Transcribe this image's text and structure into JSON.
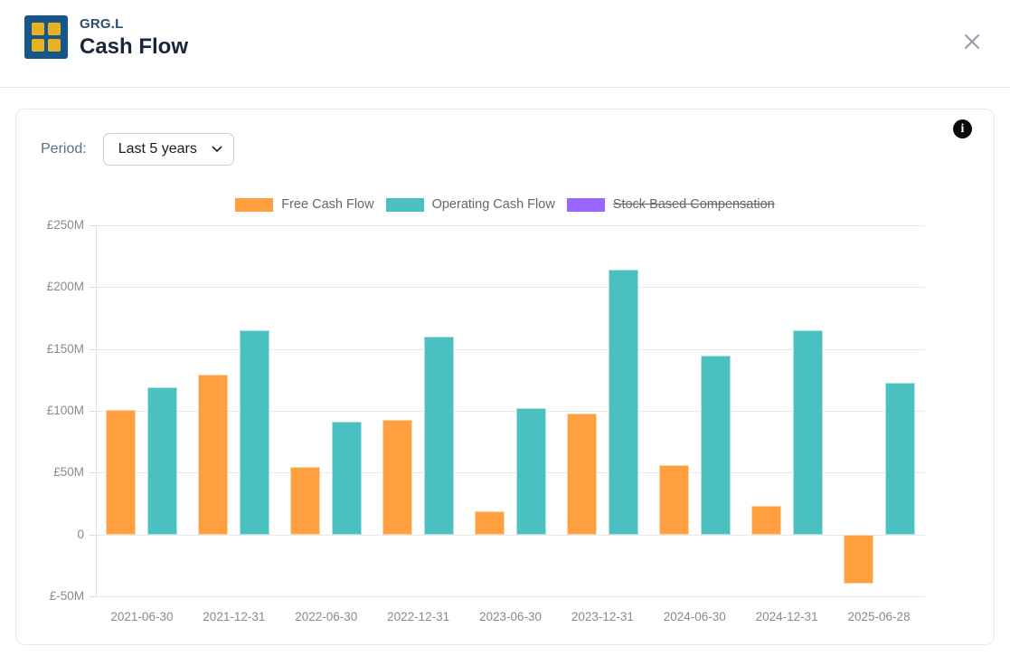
{
  "header": {
    "ticker": "GRG.L",
    "title": "Cash Flow"
  },
  "controls": {
    "period_label": "Period:",
    "period_value": "Last 5 years"
  },
  "info_icon_glyph": "i",
  "colors": {
    "free_cash_flow": "#ff9f40",
    "operating_cash_flow": "#4bc0c0",
    "stock_based_compensation": "#9966ff",
    "logo_bg": "#15578a",
    "logo_squares": "#e9b021"
  },
  "chart_data": {
    "type": "bar",
    "title": "",
    "xlabel": "",
    "ylabel": "",
    "currency": "£",
    "categories": [
      "2021-06-30",
      "2021-12-31",
      "2022-06-30",
      "2022-12-31",
      "2023-06-30",
      "2023-12-31",
      "2024-06-30",
      "2024-12-31",
      "2025-06-28"
    ],
    "series": [
      {
        "name": "Free Cash Flow",
        "color": "#ff9f40",
        "hidden": false,
        "values": [
          101,
          129,
          55,
          93,
          19,
          98,
          56,
          23,
          -40
        ]
      },
      {
        "name": "Operating Cash Flow",
        "color": "#4bc0c0",
        "hidden": false,
        "values": [
          119,
          165,
          91,
          160,
          102,
          214,
          145,
          165,
          123
        ]
      },
      {
        "name": "Stock Based Compensation",
        "color": "#9966ff",
        "hidden": true,
        "values": []
      }
    ],
    "ylim": [
      -50,
      250
    ],
    "ytick_values": [
      250,
      200,
      150,
      100,
      50,
      0,
      -50
    ],
    "ytick_labels": [
      "£250M",
      "£200M",
      "£150M",
      "£100M",
      "£50M",
      "0",
      "£-50M"
    ],
    "grid": true,
    "legend_position": "top"
  }
}
